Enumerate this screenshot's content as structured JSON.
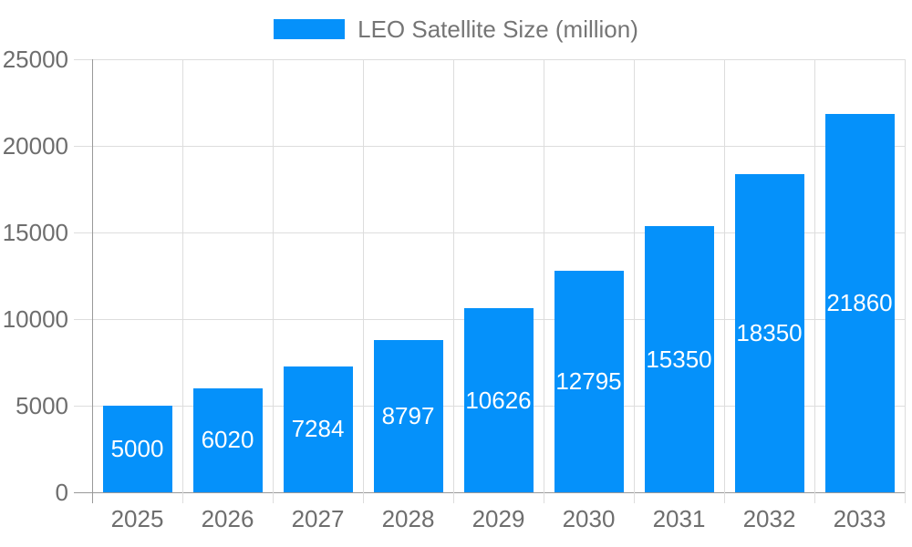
{
  "legend": {
    "label": "LEO Satellite Size (million)"
  },
  "chart_data": {
    "type": "bar",
    "title": "LEO Satellite Size (million)",
    "series_name": "LEO Satellite Size (million)",
    "categories": [
      "2025",
      "2026",
      "2027",
      "2028",
      "2029",
      "2030",
      "2031",
      "2032",
      "2033"
    ],
    "values": [
      5000,
      6020,
      7284,
      8797,
      10626,
      12795,
      15350,
      18350,
      21860
    ],
    "xlabel": "",
    "ylabel": "",
    "ylim": [
      0,
      25000
    ],
    "yticks": [
      0,
      5000,
      10000,
      15000,
      20000,
      25000
    ],
    "grid": true,
    "legend_position": "top-center",
    "value_labels": "inside-center",
    "bar_color": "#0591FA",
    "value_label_color": "#ffffff",
    "grid_color": "#dddddd",
    "axis_color": "#999999",
    "tick_label_color": "#6e6e6e",
    "title_color": "#757575"
  }
}
